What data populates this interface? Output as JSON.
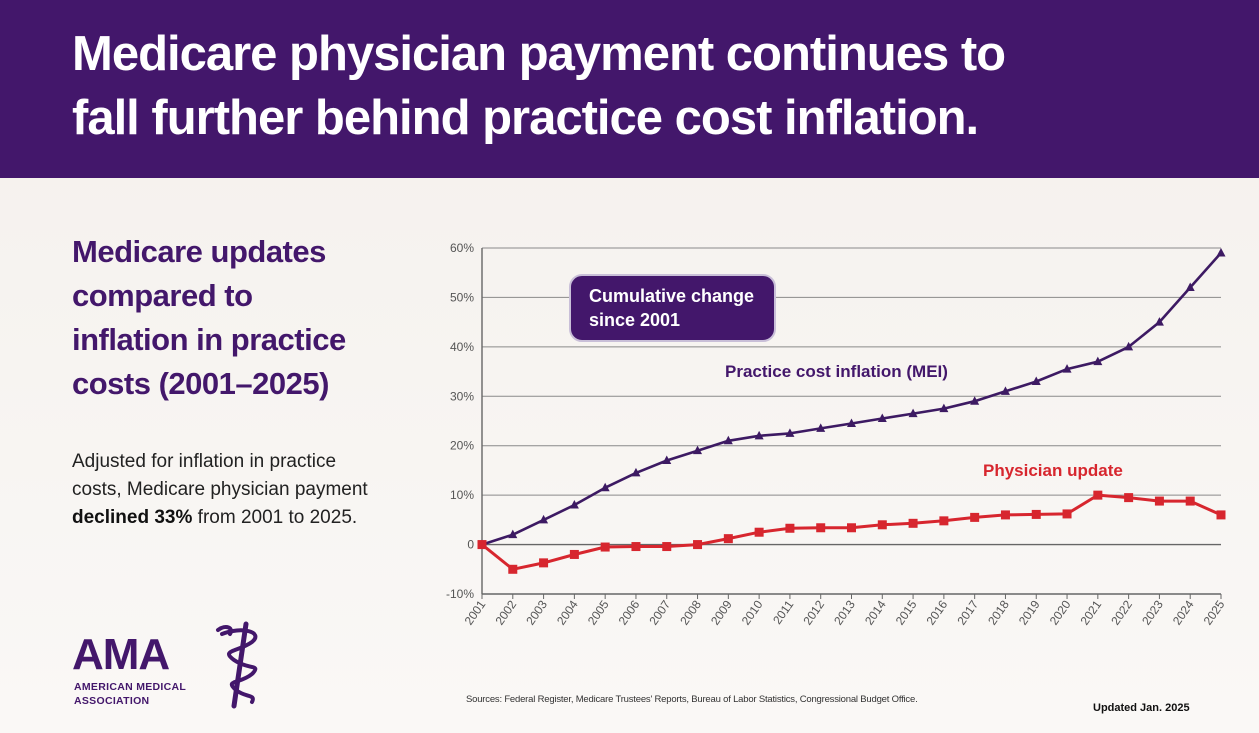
{
  "banner": {
    "title_line1": "Medicare physician payment continues to",
    "title_line2": "fall further behind practice cost inflation."
  },
  "left_panel": {
    "heading_lines": [
      "Medicare updates",
      "compared to",
      "inflation in practice",
      "costs (2001–2025)"
    ],
    "summary_line1": "Adjusted for inflation in practice",
    "summary_line2": "costs, Medicare physician payment",
    "summary_bold": "declined 33%",
    "summary_line3_rest": " from 2001 to 2025."
  },
  "logo": {
    "wordmark": "AMA",
    "sub_line1": "AMERICAN MEDICAL",
    "sub_line2": "ASSOCIATION",
    "icon": "staff-of-asclepius-icon"
  },
  "footer": {
    "sources": "Sources: Federal Register, Medicare Trustees' Reports, Bureau of Labor Statistics, Congressional Budget Office.",
    "updated": "Updated Jan. 2025"
  },
  "colors": {
    "brand_purple": "#43176b",
    "mei_line": "#3d1a63",
    "physician_line": "#d7262e",
    "gridline": "#8a8a8a"
  },
  "chart_data": {
    "type": "line",
    "title": "Cumulative change since 2001",
    "xlabel": "",
    "ylabel": "",
    "x": [
      "2001",
      "2002",
      "2003",
      "2004",
      "2005",
      "2006",
      "2007",
      "2008",
      "2009",
      "2010",
      "2011",
      "2012",
      "2013",
      "2014",
      "2015",
      "2016",
      "2017",
      "2018",
      "2019",
      "2020",
      "2021",
      "2022",
      "2023",
      "2024",
      "2025"
    ],
    "ylim": [
      -10,
      60
    ],
    "yticks": [
      -10,
      0,
      10,
      20,
      30,
      40,
      50,
      60
    ],
    "ytick_labels": [
      "-10%",
      "0",
      "10%",
      "20%",
      "30%",
      "40%",
      "50%",
      "60%"
    ],
    "grid": true,
    "series": [
      {
        "name": "Practice cost inflation (MEI)",
        "values": [
          0,
          2,
          5,
          8,
          11.5,
          14.5,
          17,
          19,
          21,
          22,
          22.5,
          23.5,
          24.5,
          25.5,
          26.5,
          27.5,
          29,
          31,
          33,
          35.5,
          37,
          40,
          45,
          52,
          59
        ]
      },
      {
        "name": "Physician update",
        "values": [
          0,
          -5,
          -3.7,
          -2,
          -0.5,
          -0.4,
          -0.4,
          0,
          1.2,
          2.5,
          3.3,
          3.4,
          3.4,
          4,
          4.3,
          4.8,
          5.5,
          6,
          6.1,
          6.2,
          10,
          9.5,
          8.8,
          8.8,
          6
        ]
      }
    ]
  }
}
